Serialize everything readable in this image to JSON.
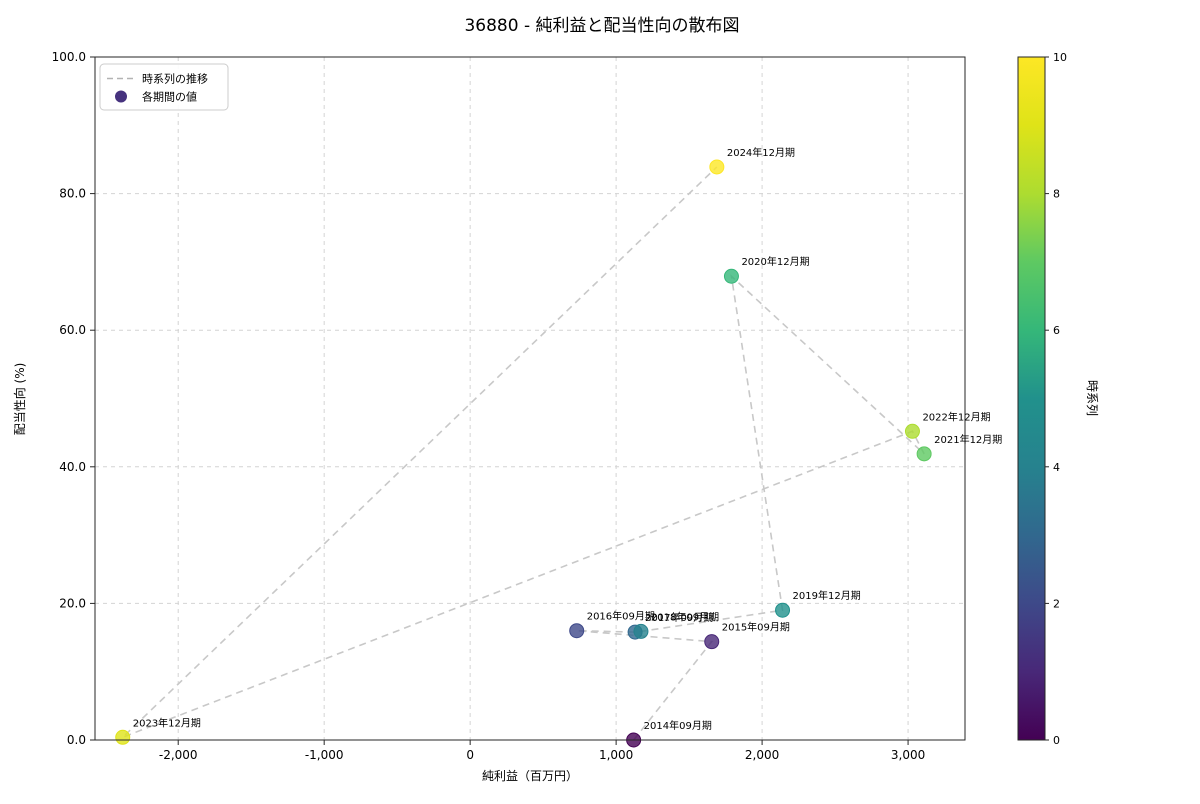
{
  "chart_data": {
    "type": "scatter",
    "title": "36880 - 純利益と配当性向の散布図",
    "xlabel": "純利益（百万円）",
    "ylabel": "配当性向 (%)",
    "xlim": [
      -2570,
      3390
    ],
    "ylim": [
      0,
      100
    ],
    "grid": true,
    "xticks": [
      {
        "value": -2000,
        "label": "-2,000"
      },
      {
        "value": -1000,
        "label": "-1,000"
      },
      {
        "value": 0,
        "label": "0"
      },
      {
        "value": 1000,
        "label": "1,000"
      },
      {
        "value": 2000,
        "label": "2,000"
      },
      {
        "value": 3000,
        "label": "3,000"
      }
    ],
    "yticks": [
      {
        "value": 0,
        "label": "0.0"
      },
      {
        "value": 20,
        "label": "20.0"
      },
      {
        "value": 40,
        "label": "40.0"
      },
      {
        "value": 60,
        "label": "60.0"
      },
      {
        "value": 80,
        "label": "80.0"
      },
      {
        "value": 100,
        "label": "100.0"
      }
    ],
    "legend": {
      "position": "upper-left",
      "items": [
        {
          "label": "時系列の推移",
          "type": "dashed-line",
          "color": "#b3b3b3"
        },
        {
          "label": "各期間の値",
          "type": "marker",
          "color": "#46327e"
        }
      ]
    },
    "colorbar": {
      "label": "時系列",
      "min": 0,
      "max": 10,
      "ticks": [
        "0",
        "2",
        "4",
        "6",
        "8",
        "10"
      ],
      "colormap": "viridis",
      "stops": [
        "#440154",
        "#482878",
        "#3e4989",
        "#31688e",
        "#26828e",
        "#21918c",
        "#35b779",
        "#5ec962",
        "#addc30",
        "#dfe318",
        "#fde725"
      ]
    },
    "series_line_color": "#c8c8c8",
    "points": [
      {
        "label": "2014年09月期",
        "x": 1120,
        "y": 0.0,
        "t": 0
      },
      {
        "label": "2015年09月期",
        "x": 1655,
        "y": 14.4,
        "t": 1
      },
      {
        "label": "2016年09月期",
        "x": 730,
        "y": 16.0,
        "t": 2
      },
      {
        "label": "2017年09月期",
        "x": 1130,
        "y": 15.8,
        "t": 3
      },
      {
        "label": "2018年09月期",
        "x": 1170,
        "y": 15.9,
        "t": 4
      },
      {
        "label": "2019年12月期",
        "x": 2140,
        "y": 19.0,
        "t": 5
      },
      {
        "label": "2020年12月期",
        "x": 1790,
        "y": 67.9,
        "t": 6
      },
      {
        "label": "2021年12月期",
        "x": 3110,
        "y": 41.9,
        "t": 7
      },
      {
        "label": "2022年12月期",
        "x": 3030,
        "y": 45.2,
        "t": 8
      },
      {
        "label": "2023年12月期",
        "x": -2380,
        "y": 0.4,
        "t": 9
      },
      {
        "label": "2024年12月期",
        "x": 1690,
        "y": 83.9,
        "t": 10
      }
    ]
  }
}
